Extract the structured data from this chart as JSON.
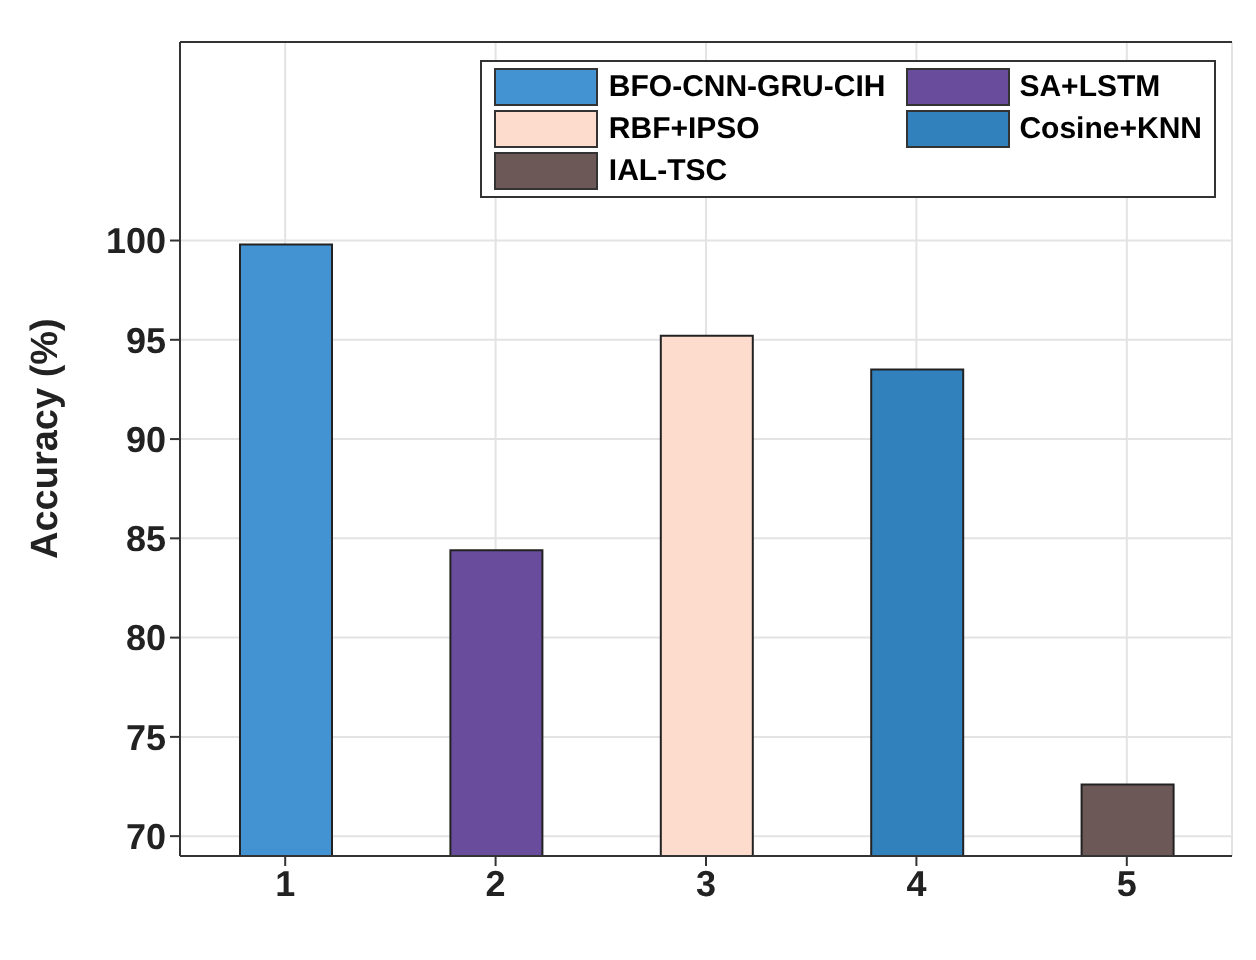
{
  "chart_data": {
    "type": "bar",
    "ylabel": "Accuracy (%)",
    "categories": [
      "1",
      "2",
      "3",
      "4",
      "5"
    ],
    "stacked": true,
    "series": [
      {
        "name": "BFO-CNN-GRU-CIH",
        "color": "#4393d3",
        "values": [
          99.8,
          null,
          null,
          null,
          null
        ]
      },
      {
        "name": "SA+LSTM",
        "color": "#6a4c9c",
        "values": [
          null,
          84.4,
          null,
          null,
          null
        ]
      },
      {
        "name": "RBF+IPSO",
        "color": "#fddccd",
        "values": [
          null,
          null,
          95.2,
          null,
          null
        ]
      },
      {
        "name": "Cosine+KNN",
        "color": "#3181bd",
        "values": [
          null,
          null,
          null,
          93.5,
          null
        ]
      },
      {
        "name": "IAL-TSC",
        "color": "#6d5858",
        "values": [
          null,
          null,
          null,
          null,
          72.6
        ]
      }
    ],
    "ylim": [
      69,
      110
    ],
    "yticks": [
      70,
      75,
      80,
      85,
      90,
      95,
      100
    ],
    "grid": true,
    "legend": "top right"
  }
}
